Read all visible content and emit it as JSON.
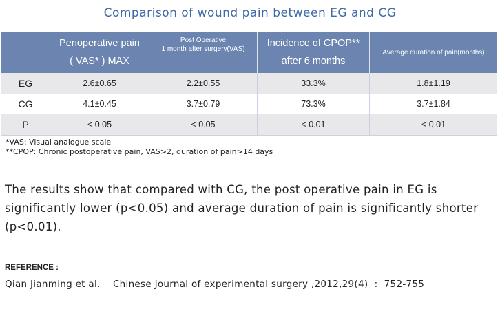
{
  "title": "Comparison of  wound pain between EG and CG",
  "table": {
    "headers": [
      {
        "lines": [
          ""
        ]
      },
      {
        "lines": [
          "Perioperative pain",
          "( VAS* ) MAX"
        ]
      },
      {
        "lines": [
          "Post Operative",
          "1 month after surgery(VAS)"
        ]
      },
      {
        "lines": [
          "Incidence of CPOP**",
          "after 6 months"
        ]
      },
      {
        "lines": [
          "Average duration of pain(months)"
        ]
      }
    ],
    "rows": [
      [
        "EG",
        "2.6±0.65",
        "2.2±0.55",
        "33.3%",
        "1.8±1.19"
      ],
      [
        "CG",
        "4.1±0.45",
        "3.7±0.79",
        "73.3%",
        "3.7±1.84"
      ],
      [
        "P",
        "< 0.05",
        "< 0.05",
        "< 0.01",
        "< 0.01"
      ]
    ]
  },
  "notes": [
    "*VAS: Visual analogue scale",
    "**CPOP:  Chronic postoperative pain, VAS>2, duration of pain>14 days"
  ],
  "paragraph": "The results show that compared with CG, the post operative pain in EG is significantly lower (p<0.05) and average duration of pain is significantly shorter (p<0.01).",
  "reference_label": "REFERENCE :",
  "citation": "Qian Jianming et al.    Chinese Journal of experimental surgery ,2012,29(4)  :  752-755",
  "colors": {
    "title": "#3d6aa6",
    "header_bg": "#6b84b0",
    "stripe": "#e8e8ea"
  }
}
